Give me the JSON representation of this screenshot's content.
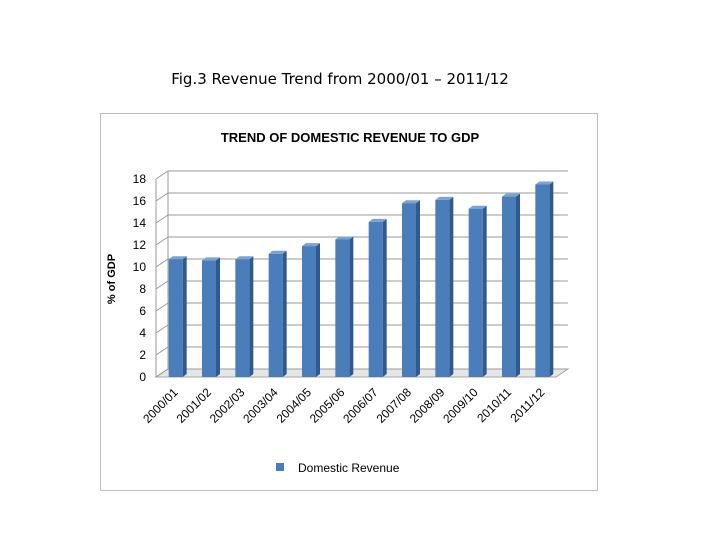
{
  "caption": "Fig.3 Revenue Trend  from 2000/01 – 2011/12",
  "chart_data": {
    "type": "bar",
    "title": "TREND OF DOMESTIC REVENUE TO GDP",
    "xlabel": "",
    "ylabel": "% of GDP",
    "ylim": [
      0,
      18
    ],
    "yticks": [
      0,
      2,
      4,
      6,
      8,
      10,
      12,
      14,
      16,
      18
    ],
    "grid": true,
    "legend_position": "bottom",
    "categories": [
      "2000/01",
      "2001/02",
      "2002/03",
      "2003/04",
      "2004/05",
      "2005/06",
      "2006/07",
      "2007/08",
      "2008/09",
      "2009/10",
      "2010/11",
      "2011/12"
    ],
    "series": [
      {
        "name": "Domestic Revenue",
        "color": "#4a7ebb",
        "values": [
          10.7,
          10.6,
          10.7,
          11.2,
          11.9,
          12.5,
          14.1,
          15.8,
          16.1,
          15.3,
          16.4,
          17.5
        ]
      }
    ]
  }
}
